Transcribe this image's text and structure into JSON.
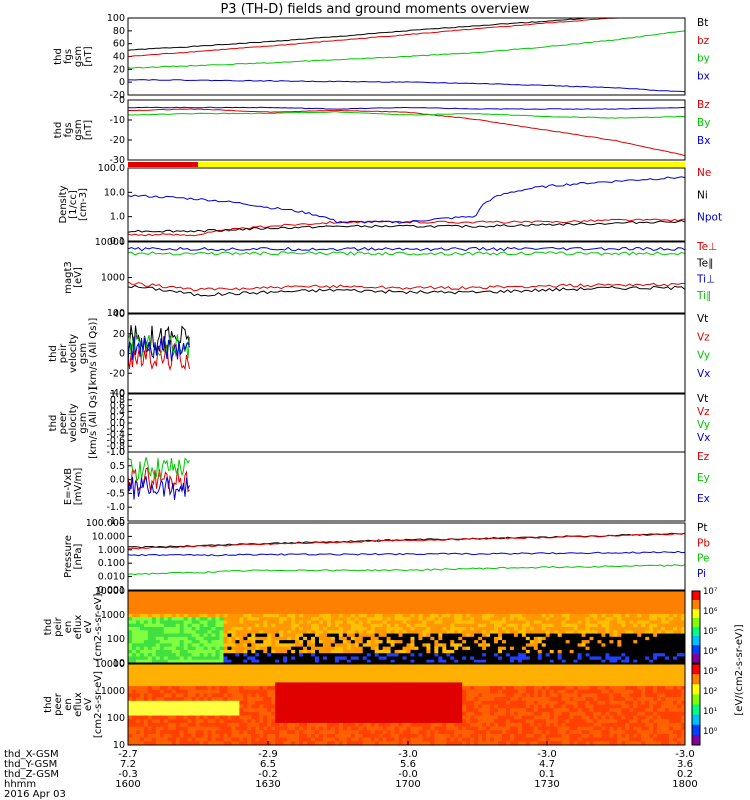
{
  "title": "P3 (TH-D) fields and ground moments overview",
  "date": "2016 Apr 03",
  "colors": {
    "black": "#000000",
    "red": "#e00000",
    "green": "#00c800",
    "blue": "#0000d0",
    "yellow": "#ffff00"
  },
  "chart_data": [
    {
      "type": "line",
      "panel": "fgs_gsm",
      "ylabel": [
        "thd",
        "fgs",
        "gsm",
        "[nT]"
      ],
      "ylim": [
        -20,
        100
      ],
      "yticks": [
        100,
        80,
        60,
        40,
        20,
        0,
        -20
      ],
      "series": [
        {
          "name": "Bt",
          "color": "#000000",
          "y": [
            50,
            56,
            63,
            71,
            80,
            88,
            95,
            103,
            110
          ]
        },
        {
          "name": "bz",
          "color": "#e00000",
          "y": [
            40,
            48,
            56,
            65,
            74,
            83,
            92,
            100,
            110
          ]
        },
        {
          "name": "by",
          "color": "#00c800",
          "y": [
            22,
            26,
            30,
            35,
            40,
            46,
            55,
            66,
            80
          ]
        },
        {
          "name": "bx",
          "color": "#0000d0",
          "y": [
            4,
            3,
            2,
            1,
            0,
            -2,
            -5,
            -9,
            -15
          ]
        }
      ]
    },
    {
      "type": "line",
      "panel": "fgs_dsl",
      "ylabel": [
        "thd",
        "fgs",
        "gsm",
        "[nT]"
      ],
      "ylim": [
        -35,
        5
      ],
      "yticks": [
        0,
        -10,
        -20,
        -30
      ],
      "series": [
        {
          "name": "Bz",
          "color": "#e00000",
          "y": [
            -2,
            -1,
            -3,
            -2,
            -3,
            -8,
            -15,
            -22,
            -32
          ]
        },
        {
          "name": "By",
          "color": "#00c800",
          "y": [
            -5,
            -4,
            -4,
            -3,
            -5,
            -4,
            -6,
            -7,
            -6
          ]
        },
        {
          "name": "Bx",
          "color": "#0000d0",
          "y": [
            0,
            0,
            0,
            -1,
            0,
            -1,
            -1,
            -1,
            0
          ]
        }
      ]
    },
    {
      "type": "line",
      "panel": "density",
      "ylabel": [
        "Density",
        "[1/cc]",
        "[cm-3]"
      ],
      "yscale": "log",
      "ylim": [
        0.1,
        300
      ],
      "yticks": [
        "100.0",
        "10.0",
        "1.0",
        "0.1"
      ],
      "series": [
        {
          "name": "Ne",
          "color": "#e00000",
          "y": [
            0.2,
            0.2,
            0.5,
            0.8,
            0.8,
            0.8,
            0.8,
            1.0,
            1.0
          ]
        },
        {
          "name": "Ni",
          "color": "#000000",
          "y": [
            0.3,
            0.3,
            0.4,
            0.5,
            0.5,
            0.5,
            0.6,
            0.7,
            0.9
          ]
        },
        {
          "name": "Npot",
          "color": "#0000d0",
          "y": [
            15,
            10,
            4,
            0.8,
            0.8,
            1.5,
            40,
            70,
            110
          ]
        }
      ]
    },
    {
      "type": "line",
      "panel": "temperature",
      "ylabel": [
        "magt3",
        "[eV]"
      ],
      "yscale": "log",
      "ylim": [
        50,
        12000
      ],
      "yticks": [
        "10000",
        "1000",
        "100"
      ],
      "series": [
        {
          "name": "Te⊥",
          "color": "#e00000",
          "y": [
            500,
            300,
            350,
            400,
            350,
            350,
            400,
            450,
            450
          ]
        },
        {
          "name": "Te∥",
          "color": "#000000",
          "y": [
            400,
            200,
            250,
            300,
            250,
            250,
            300,
            350,
            350
          ]
        },
        {
          "name": "Ti⊥",
          "color": "#0000d0",
          "y": [
            7000,
            7000,
            7000,
            7000,
            7000,
            7000,
            7000,
            7000,
            7000
          ]
        },
        {
          "name": "Ti∥",
          "color": "#00c800",
          "y": [
            5000,
            5000,
            5000,
            5000,
            5000,
            5000,
            5000,
            5000,
            5000
          ]
        }
      ]
    },
    {
      "type": "line",
      "panel": "peir_velocity",
      "ylabel": [
        "thd",
        "peir",
        "velocity",
        "gsm",
        "[km/s (All Qs)]"
      ],
      "ylim": [
        -40,
        40
      ],
      "yticks": [
        40,
        20,
        0,
        -20,
        -40
      ],
      "series": [
        {
          "name": "Vt",
          "color": "#000000",
          "y": [
            15
          ]
        },
        {
          "name": "Vz",
          "color": "#e00000",
          "y": [
            -3
          ]
        },
        {
          "name": "Vy",
          "color": "#00c800",
          "y": [
            8
          ]
        },
        {
          "name": "Vx",
          "color": "#0000d0",
          "y": [
            4
          ]
        }
      ]
    },
    {
      "type": "line",
      "panel": "peer_velocity",
      "ylabel": [
        "thd",
        "peer",
        "velocity",
        "gsm",
        "[km/s (All Qs)]"
      ],
      "ylim": [
        -1,
        1
      ],
      "yticks": [
        "1.0",
        "0.8",
        "0.6",
        "0.4",
        "0.2",
        "0.0",
        "-0.2",
        "-0.4",
        "-0.6",
        "-0.8",
        "-1.0"
      ],
      "series": [
        {
          "name": "Vt",
          "color": "#000000",
          "y": []
        },
        {
          "name": "Vz",
          "color": "#e00000",
          "y": []
        },
        {
          "name": "Vy",
          "color": "#00c800",
          "y": []
        },
        {
          "name": "Vx",
          "color": "#0000d0",
          "y": []
        }
      ]
    },
    {
      "type": "line",
      "panel": "efield",
      "ylabel": [
        "E=-VxB",
        "[mV/m]"
      ],
      "ylim": [
        -1.5,
        1
      ],
      "yticks": [
        "1.0",
        "0.5",
        "0.0",
        "-0.5",
        "-1.0",
        "-1.5"
      ],
      "series": [
        {
          "name": "Ez",
          "color": "#e00000",
          "y": [
            0
          ]
        },
        {
          "name": "Ey",
          "color": "#00c800",
          "y": [
            0.4
          ]
        },
        {
          "name": "Ex",
          "color": "#0000d0",
          "y": [
            -0.3
          ]
        }
      ]
    },
    {
      "type": "line",
      "panel": "pressure",
      "ylabel": [
        "Pressure",
        "[nPa]"
      ],
      "yscale": "log",
      "ylim": [
        0.001,
        100
      ],
      "yticks": [
        "100.000",
        "10.000",
        "1.000",
        "0.100",
        "0.010",
        "0.001"
      ],
      "series": [
        {
          "name": "Pt",
          "color": "#000000",
          "y": [
            1.5,
            2,
            3,
            4,
            5.5,
            7,
            9,
            12,
            17
          ]
        },
        {
          "name": "Pb",
          "color": "#e00000",
          "y": [
            1.2,
            1.8,
            2.6,
            3.6,
            5,
            6.5,
            8.5,
            11,
            16
          ]
        },
        {
          "name": "Pe",
          "color": "#00c800",
          "y": [
            0.015,
            0.02,
            0.03,
            0.03,
            0.03,
            0.04,
            0.05,
            0.06,
            0.07
          ]
        },
        {
          "name": "Pi",
          "color": "#0000d0",
          "y": [
            0.4,
            0.4,
            0.45,
            0.45,
            0.5,
            0.5,
            0.55,
            0.6,
            0.7
          ]
        }
      ]
    },
    {
      "type": "heatmap",
      "panel": "peir_spectrogram",
      "ylabel": [
        "thd",
        "peir",
        "en",
        "eflux",
        "eV",
        "[cm2-s-sr-eV]"
      ],
      "yscale": "log",
      "yticks": [
        "10000",
        "1000",
        "100",
        "10"
      ]
    },
    {
      "type": "heatmap",
      "panel": "peer_spectrogram",
      "ylabel": [
        "thd",
        "peer",
        "en",
        "eflux",
        "eV",
        "[cm2-s-sr-eV]"
      ],
      "yscale": "log",
      "yticks": [
        "10000",
        "1000",
        "100",
        "10"
      ],
      "colorbar": {
        "label": "[eV/(cm2-s-sr-eV)]",
        "ticks": [
          "10⁷",
          "10⁶",
          "10⁵",
          "10⁴",
          "10³",
          "10²",
          "10¹",
          "10⁰"
        ]
      }
    }
  ],
  "footer": {
    "rows": [
      {
        "label": "thd_X-GSM",
        "values": [
          "-2.7",
          "-2.9",
          "-3.0",
          "-3.0",
          "-3.0"
        ]
      },
      {
        "label": "thd_Y-GSM",
        "values": [
          "7.2",
          "6.5",
          "5.6",
          "4.7",
          "3.6"
        ]
      },
      {
        "label": "thd_Z-GSM",
        "values": [
          "-0.3",
          "-0.2",
          "-0.0",
          "0.1",
          "0.2"
        ]
      },
      {
        "label": "hhmm",
        "values": [
          "1600",
          "1630",
          "1700",
          "1730",
          "1800"
        ]
      }
    ]
  }
}
